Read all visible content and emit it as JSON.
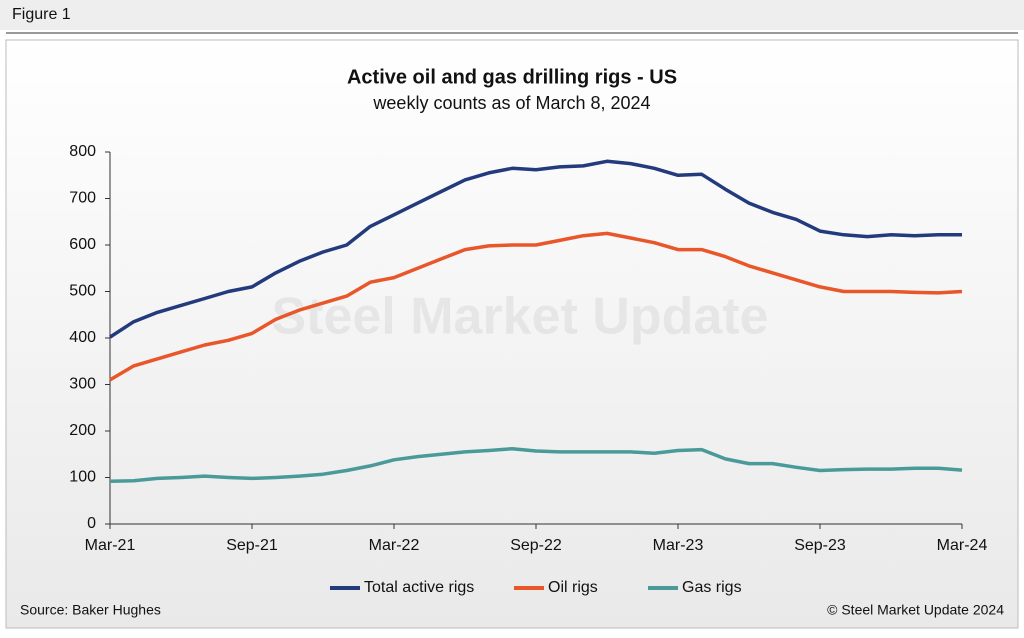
{
  "figure_label": "Figure 1",
  "source": "Source: Baker Hughes",
  "credit": "© Steel Market Update 2024",
  "watermark": "Steel Market Update",
  "chart_data": {
    "type": "line",
    "title": "Active oil and gas drilling rigs - US",
    "subtitle": "weekly counts as of March 8, 2024",
    "categories": [
      "Mar-21",
      null,
      null,
      null,
      null,
      null,
      "Sep-21",
      null,
      null,
      null,
      null,
      null,
      "Mar-22",
      null,
      null,
      null,
      null,
      null,
      "Sep-22",
      null,
      null,
      null,
      null,
      null,
      "Mar-23",
      null,
      null,
      null,
      null,
      null,
      "Sep-23",
      null,
      null,
      null,
      null,
      null,
      "Mar-24"
    ],
    "series": [
      {
        "name": "Total active rigs",
        "color": "#233a7d",
        "values": [
          402,
          435,
          455,
          470,
          485,
          500,
          510,
          540,
          565,
          585,
          600,
          640,
          665,
          690,
          715,
          740,
          755,
          765,
          762,
          768,
          770,
          780,
          775,
          765,
          750,
          752,
          720,
          690,
          670,
          655,
          630,
          622,
          618,
          622,
          620,
          622,
          622
        ]
      },
      {
        "name": "Oil rigs",
        "color": "#e8562a",
        "values": [
          310,
          340,
          355,
          370,
          385,
          395,
          410,
          440,
          460,
          475,
          490,
          520,
          530,
          550,
          570,
          590,
          598,
          600,
          600,
          610,
          620,
          625,
          615,
          605,
          590,
          590,
          575,
          555,
          540,
          525,
          510,
          500,
          500,
          500,
          498,
          497,
          500
        ]
      },
      {
        "name": "Gas rigs",
        "color": "#4b9a9a",
        "values": [
          92,
          93,
          98,
          100,
          103,
          100,
          98,
          100,
          103,
          107,
          115,
          125,
          138,
          145,
          150,
          155,
          158,
          162,
          157,
          155,
          155,
          155,
          155,
          152,
          158,
          160,
          140,
          130,
          130,
          122,
          115,
          117,
          118,
          118,
          120,
          120,
          116
        ]
      }
    ],
    "ylim": [
      0,
      800
    ],
    "yticks": [
      0,
      100,
      200,
      300,
      400,
      500,
      600,
      700,
      800
    ],
    "grid": false,
    "legend": "bottom"
  }
}
